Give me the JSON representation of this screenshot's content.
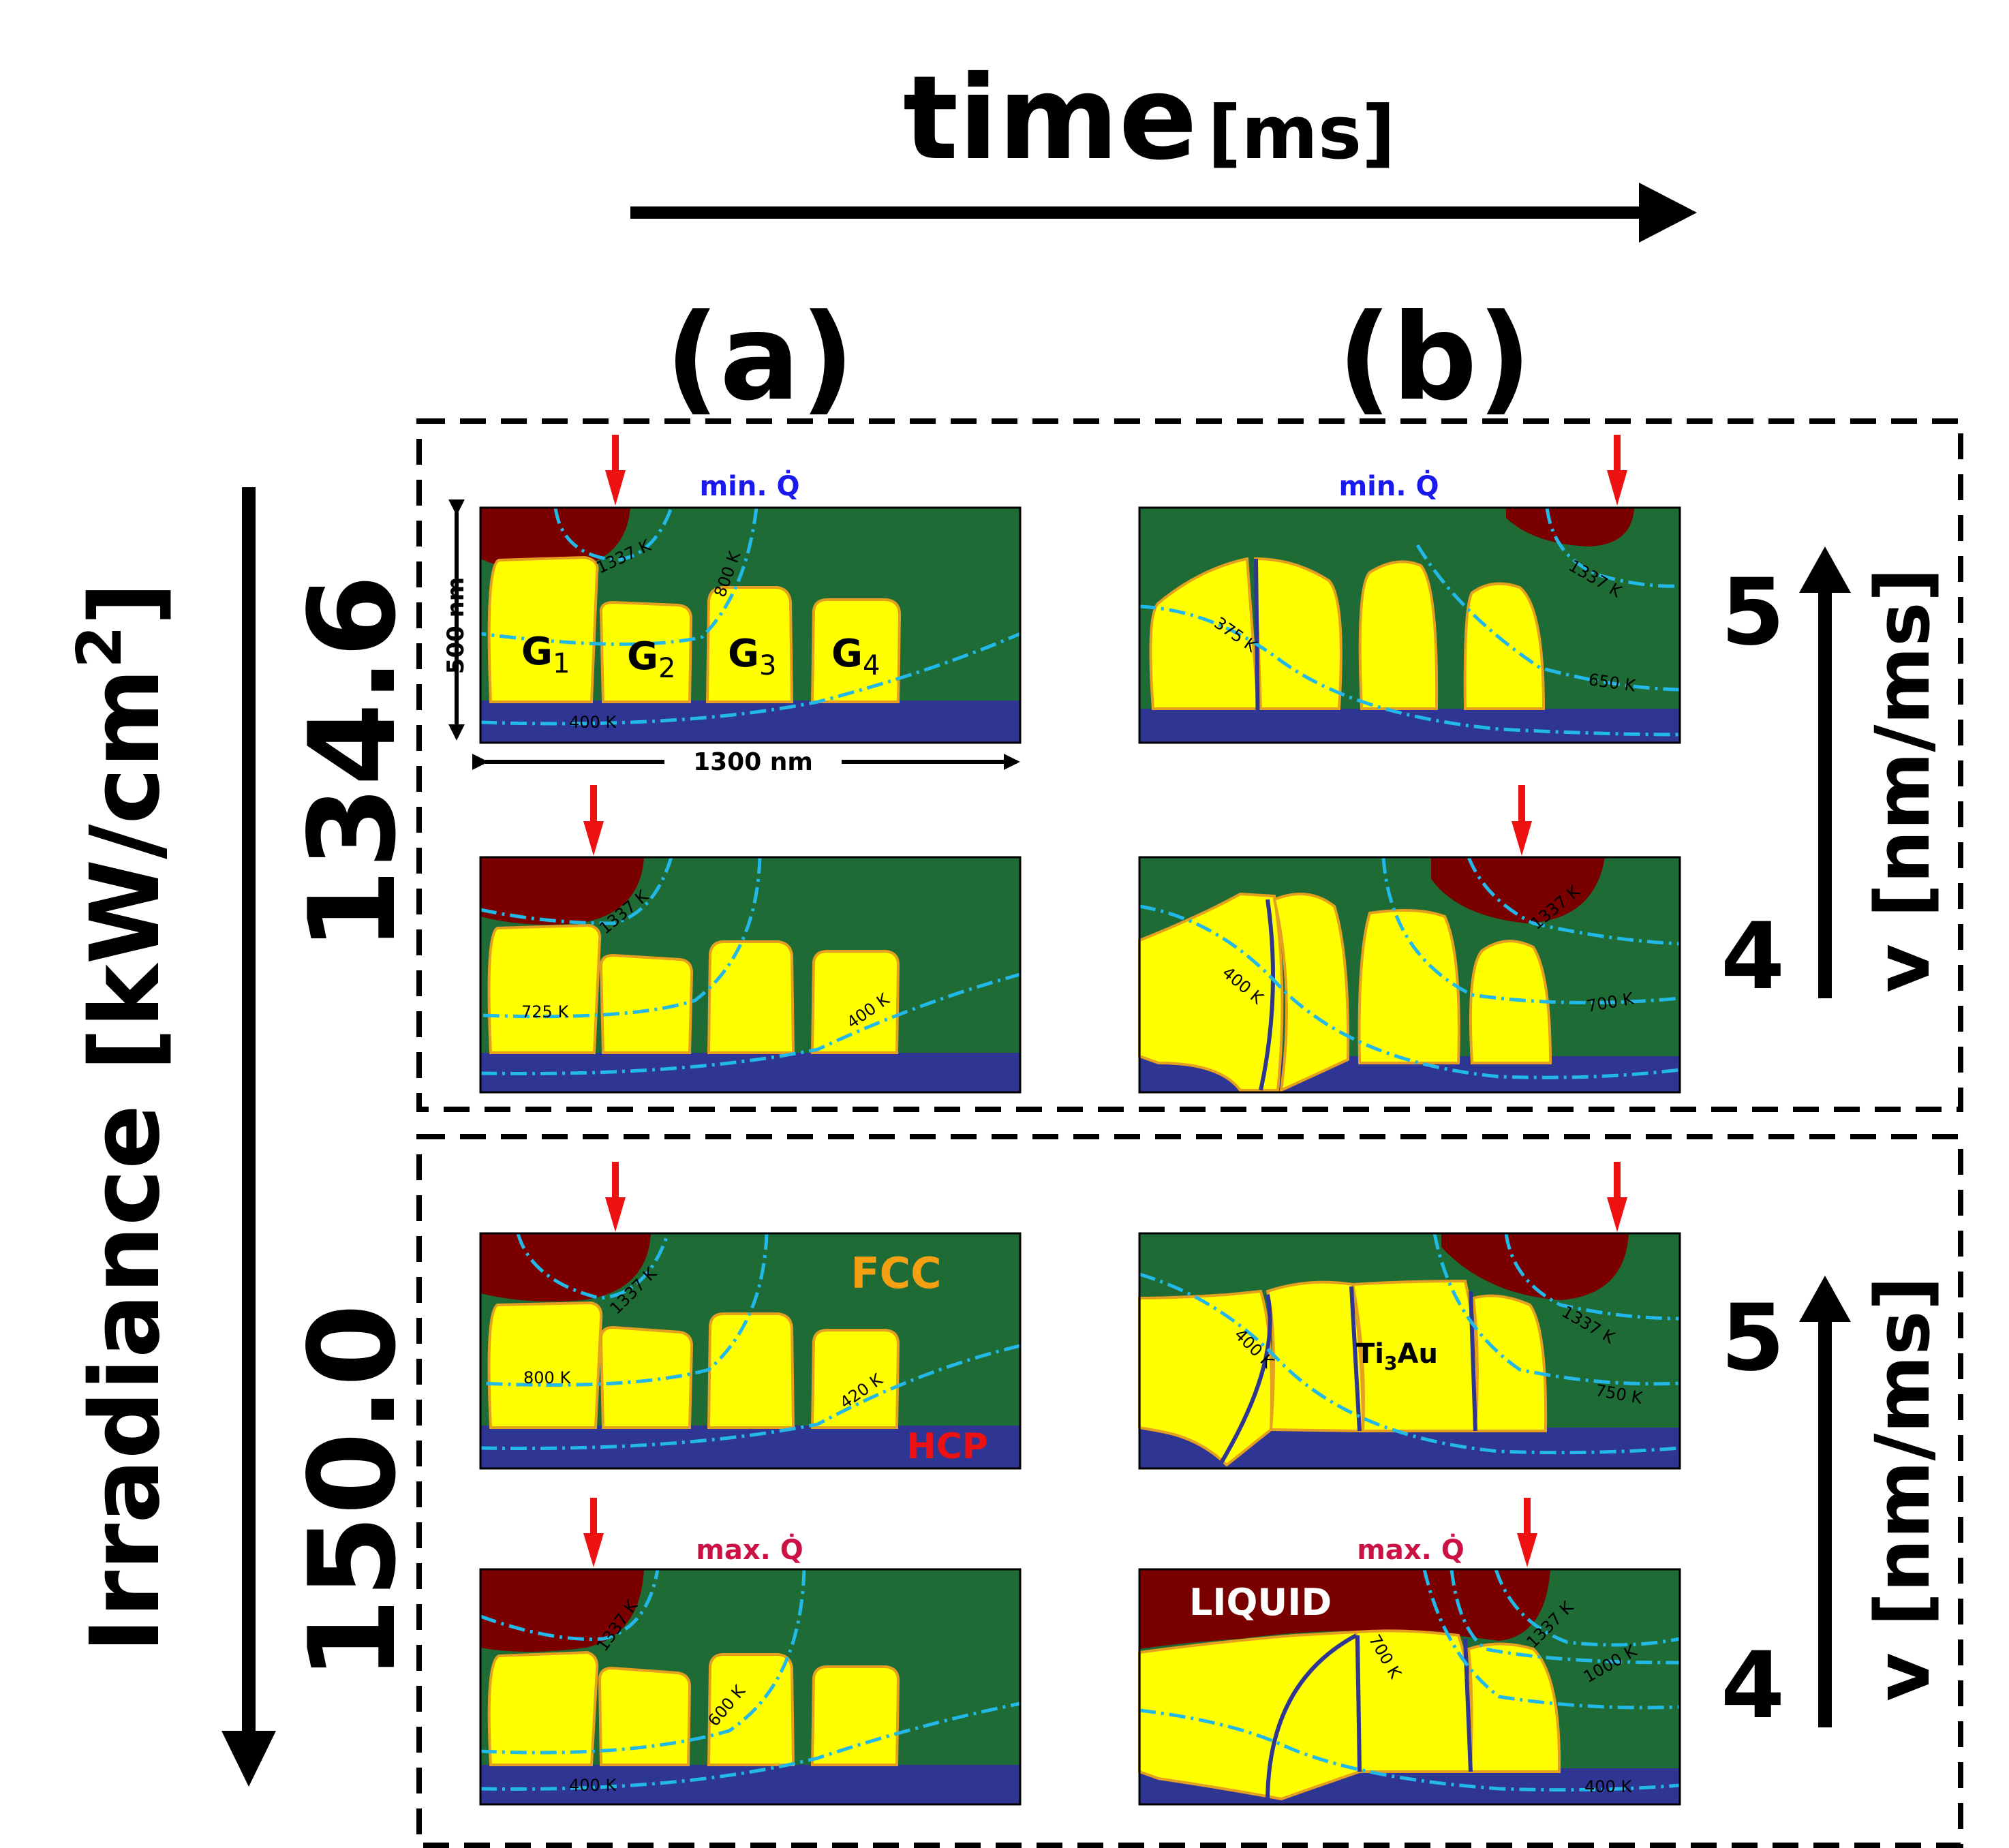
{
  "header": {
    "time_word": "time",
    "time_unit": "[ms]",
    "col_a": "(a)",
    "col_b": "(b)"
  },
  "left_axis": {
    "label_main": "Irradiance [kW/cm",
    "label_sup": "2",
    "label_close": "]"
  },
  "groups": [
    {
      "irradiance": "134.6"
    },
    {
      "irradiance": "150.0"
    }
  ],
  "right_axis": {
    "label": "v [nm/ms]",
    "upper_value": "5",
    "lower_value": "4"
  },
  "annotations": {
    "min_q": "min. Q̇",
    "max_q": "max. Q̇",
    "scale_vertical": "500 nm",
    "scale_horizontal": "1300 nm",
    "fcc": "FCC",
    "hcp": "HCP",
    "liquid": "LIQUID",
    "ti3au_main": "Ti",
    "ti3au_sub": "3",
    "ti3au_tail": "Au",
    "grains": [
      {
        "main": "G",
        "sub": "1"
      },
      {
        "main": "G",
        "sub": "2"
      },
      {
        "main": "G",
        "sub": "3"
      },
      {
        "main": "G",
        "sub": "4"
      }
    ]
  },
  "isotherms": {
    "a1": [
      "1337 K",
      "800 K",
      "400 K"
    ],
    "b1": [
      "1337 K",
      "375 K",
      "650 K"
    ],
    "a2": [
      "1337 K",
      "725 K",
      "400 K"
    ],
    "b2": [
      "1337 K",
      "400 K",
      "700 K"
    ],
    "a3": [
      "1337 K",
      "800 K",
      "420 K"
    ],
    "b3": [
      "1337 K",
      "400 K",
      "750 K"
    ],
    "a4": [
      "1337 K",
      "600 K",
      "400 K"
    ],
    "b4": [
      "1337 K",
      "700 K",
      "1000 K",
      "400 K"
    ]
  },
  "colors": {
    "fcc_green": "#1e6b35",
    "grain_yellow": "#ffff00",
    "hcp_blue": "#2e3592",
    "liquid_red": "#7a0000",
    "isotherm_cyan": "#22b8e8",
    "arrow_red": "#ee1111",
    "min_blue": "#1a1aee",
    "max_crimson": "#cc1144",
    "fcc_orange": "#f5a012"
  }
}
